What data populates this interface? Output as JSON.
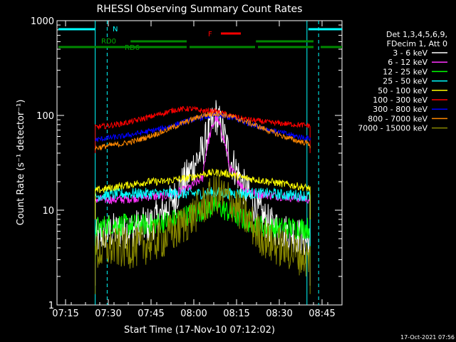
{
  "chart_data": {
    "type": "line",
    "title": "RHESSI Observing Summary Count Rates",
    "xlabel": "Start Time (17-Nov-10 07:12:02)",
    "ylabel": "Count Rate (s⁻¹ detector⁻¹)",
    "yscale": "log",
    "ylim": [
      1,
      1000
    ],
    "xlim_minutes": [
      0,
      100
    ],
    "x_ticks": [
      {
        "label": "07:15",
        "t": 3
      },
      {
        "label": "07:30",
        "t": 18
      },
      {
        "label": "07:45",
        "t": 33
      },
      {
        "label": "08:00",
        "t": 48
      },
      {
        "label": "08:15",
        "t": 63
      },
      {
        "label": "08:30",
        "t": 78
      },
      {
        "label": "08:45",
        "t": 93
      }
    ],
    "y_ticks": [
      {
        "label": "1",
        "v": 1
      },
      {
        "label": "10",
        "v": 10
      },
      {
        "label": "100",
        "v": 100
      },
      {
        "label": "1000",
        "v": 1000
      }
    ],
    "legend_header": [
      "Det 1,3,4,5,6,9,",
      "FDecim 1, Att 0"
    ],
    "annotations": {
      "night_label": "N",
      "flare_label": "F",
      "rd0_label": "RD0",
      "rd6_label": "RD6"
    },
    "footer_date": "17-Oct-2021 07:56",
    "colors": {
      "axes": "#ffffff",
      "night": "#00ffff",
      "flare": "#ff0000",
      "readout": "#008800"
    },
    "night_intervals": [
      [
        0,
        13.4
      ],
      [
        87.7,
        100
      ]
    ],
    "night_solid_lines": [
      13.4,
      87.7
    ],
    "night_dashed_lines": [
      17.6,
      91.8
    ],
    "flare_interval": [
      57.5,
      64.5
    ],
    "rd0_intervals": [
      [
        25.8,
        45.5
      ],
      [
        69.8,
        90
      ]
    ],
    "rd6_intervals": [
      [
        0,
        45.5
      ],
      [
        46,
        69.5
      ],
      [
        70,
        90
      ],
      [
        92,
        100
      ]
    ],
    "series": [
      {
        "name": "3 - 6 keV",
        "color": "#ffffff",
        "gap": 1.6,
        "baseline": [
          5,
          6,
          6,
          6.5,
          7,
          9,
          14,
          24,
          42,
          100,
          35,
          18,
          10,
          7,
          6,
          5.5,
          4.5
        ],
        "noise": 0.2
      },
      {
        "name": "6 - 12 keV",
        "color": "#ff33ff",
        "gap": 3.9,
        "baseline": [
          13,
          13,
          13,
          13.5,
          14,
          14,
          15,
          17,
          22,
          95,
          28,
          17,
          15,
          14.5,
          14,
          13.5,
          13
        ],
        "noise": 0.05
      },
      {
        "name": "12 - 25 keV",
        "color": "#00ff00",
        "gap": 2.8,
        "baseline": [
          6.5,
          7,
          7,
          7,
          7,
          7.5,
          8,
          9,
          10,
          11,
          9.5,
          8,
          7,
          6.5,
          6.5,
          6.5,
          6.5
        ],
        "noise": 0.12
      },
      {
        "name": "25 - 50 keV",
        "color": "#00ffff",
        "gap": 4.2,
        "baseline": [
          14,
          14.5,
          15,
          15,
          15,
          15,
          15,
          15,
          15,
          15.5,
          15,
          15,
          15,
          15,
          14.5,
          14.5,
          14
        ],
        "noise": 0.06
      },
      {
        "name": "50 - 100 keV",
        "color": "#ffff00",
        "gap": 8,
        "baseline": [
          16,
          17,
          18,
          19,
          20,
          20,
          21,
          22,
          24,
          25,
          24,
          22,
          21,
          20,
          19,
          18,
          17
        ],
        "noise": 0.04
      },
      {
        "name": "100 - 300 keV",
        "color": "#ff0000",
        "gap": 40,
        "baseline": [
          75,
          78,
          82,
          88,
          96,
          105,
          115,
          118,
          112,
          110,
          100,
          92,
          88,
          84,
          82,
          80,
          78
        ],
        "noise": 0.03
      },
      {
        "name": "300 - 800 keV",
        "color": "#0000ff",
        "gap": 55,
        "baseline": [
          55,
          58,
          60,
          64,
          68,
          73,
          80,
          88,
          96,
          100,
          95,
          86,
          78,
          70,
          65,
          60,
          57
        ],
        "noise": 0.03
      },
      {
        "name": "800 - 7000 keV",
        "color": "#ff8800",
        "gap": 45,
        "baseline": [
          45,
          48,
          50,
          54,
          60,
          67,
          77,
          88,
          100,
          105,
          98,
          88,
          78,
          68,
          60,
          54,
          50
        ],
        "noise": 0.03
      },
      {
        "name": "7000 - 15000 keV",
        "color": "#888800",
        "gap": 1.3,
        "baseline": [
          3.5,
          4,
          4,
          4,
          4.5,
          5,
          6,
          8,
          11,
          15,
          13,
          9,
          6,
          4.5,
          4,
          3.5,
          3
        ],
        "noise": 0.22
      }
    ],
    "data_window": [
      13.4,
      88.8
    ]
  }
}
